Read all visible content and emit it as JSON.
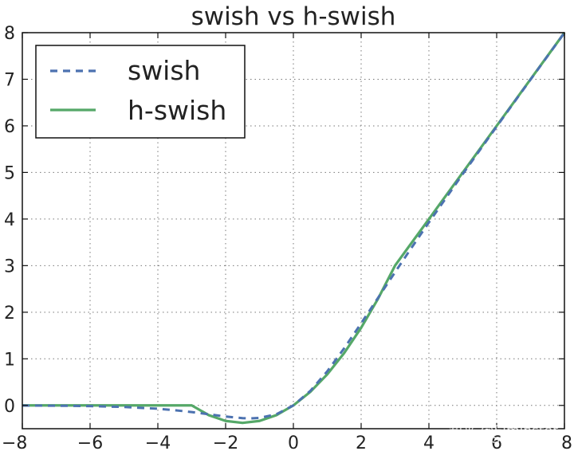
{
  "chart_data": {
    "type": "line",
    "title": "swish vs h-swish",
    "xlabel": "",
    "ylabel": "",
    "xlim": [
      -8,
      8
    ],
    "ylim": [
      -0.5,
      8
    ],
    "x_ticks": [
      -8,
      -6,
      -4,
      -2,
      0,
      2,
      4,
      6,
      8
    ],
    "y_ticks": [
      0,
      1,
      2,
      3,
      4,
      5,
      6,
      7,
      8
    ],
    "x_tick_labels": [
      "−8",
      "−6",
      "−4",
      "−2",
      "0",
      "2",
      "4",
      "6",
      "8"
    ],
    "y_tick_labels": [
      "0",
      "1",
      "2",
      "3",
      "4",
      "5",
      "6",
      "7",
      "8"
    ],
    "grid": true,
    "legend_position": "top-left",
    "series": [
      {
        "name": "swish",
        "style": "dashed",
        "color": "#4c72b0",
        "x": [
          -8,
          -7,
          -6,
          -5,
          -4,
          -3.5,
          -3,
          -2.5,
          -2,
          -1.5,
          -1.28,
          -1,
          -0.5,
          0,
          0.5,
          1,
          1.5,
          2,
          2.5,
          3,
          3.5,
          4,
          5,
          6,
          7,
          8
        ],
        "y": [
          -0.0027,
          -0.0064,
          -0.0148,
          -0.0335,
          -0.0719,
          -0.1029,
          -0.1423,
          -0.1896,
          -0.2384,
          -0.2736,
          -0.2785,
          -0.2689,
          -0.1888,
          0,
          0.3112,
          0.7311,
          1.2264,
          1.7616,
          2.3104,
          2.8577,
          3.3971,
          3.9281,
          4.9665,
          5.9852,
          6.9936,
          7.9973
        ]
      },
      {
        "name": "h-swish",
        "style": "solid",
        "color": "#55a868",
        "x": [
          -8,
          -7,
          -6,
          -5,
          -4,
          -3,
          -2.5,
          -2,
          -1.5,
          -1,
          -0.5,
          0,
          0.5,
          1,
          1.5,
          2,
          2.5,
          3,
          4,
          5,
          6,
          7,
          8
        ],
        "y": [
          0,
          0,
          0,
          0,
          0,
          0,
          -0.2083,
          -0.3333,
          -0.375,
          -0.3333,
          -0.2083,
          0,
          0.2917,
          0.6667,
          1.125,
          1.6667,
          2.2917,
          3,
          4,
          5,
          6,
          7,
          8
        ]
      }
    ]
  },
  "watermark": {
    "line1": "知乎 @Elminster",
    "line2": "CSDN @SpikeKing"
  }
}
